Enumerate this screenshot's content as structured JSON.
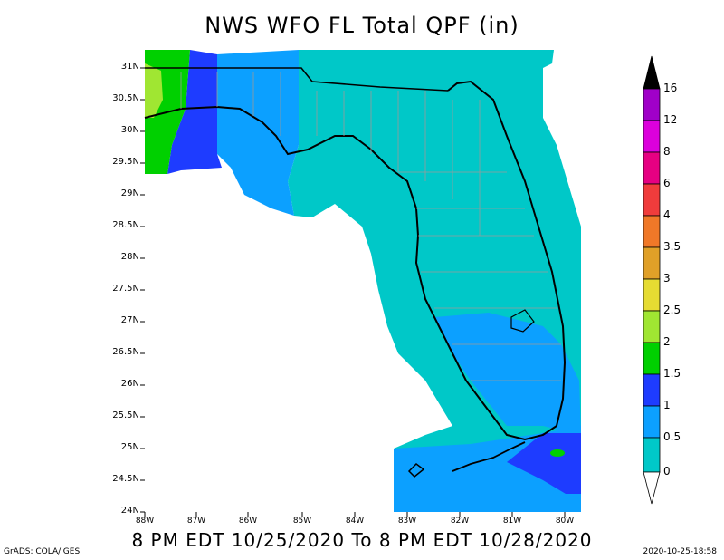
{
  "title": "NWS WFO FL Total QPF (in)",
  "subtitle": "8 PM EDT 10/25/2020 To 8 PM EDT 10/28/2020",
  "footer": {
    "left": "GrADS: COLA/IGES",
    "right": "2020-10-25-18:58"
  },
  "axes": {
    "lat_labels": [
      "31N",
      "30.5N",
      "30N",
      "29.5N",
      "29N",
      "28.5N",
      "28N",
      "27.5N",
      "27N",
      "26.5N",
      "26N",
      "25.5N",
      "25N",
      "24.5N",
      "24N"
    ],
    "lon_labels": [
      "88W",
      "87W",
      "86W",
      "85W",
      "84W",
      "83W",
      "82W",
      "81W",
      "80W"
    ]
  },
  "color_scale": {
    "labels": [
      "16",
      "12",
      "8",
      "6",
      "4",
      "3.5",
      "3",
      "2.5",
      "2",
      "1.5",
      "1",
      "0.5",
      "0"
    ],
    "colors": [
      "#a000c8",
      "#dc00dc",
      "#e60082",
      "#f03c3c",
      "#f07828",
      "#e0a028",
      "#e6dc32",
      "#a0e632",
      "#00d000",
      "#1e3cff",
      "#0ca0ff",
      "#00c8c8"
    ]
  }
}
